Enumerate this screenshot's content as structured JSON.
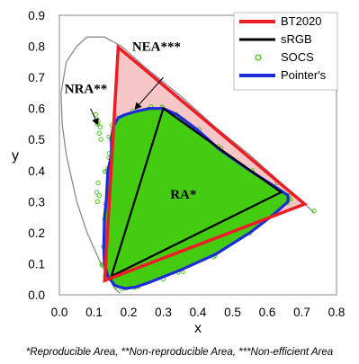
{
  "chart_data": {
    "type": "scatter",
    "xlabel": "x",
    "ylabel": "y",
    "xlim": [
      0.0,
      0.8
    ],
    "ylim": [
      0.0,
      0.9
    ],
    "xticks": [
      "0.0",
      "0.1",
      "0.2",
      "0.3",
      "0.4",
      "0.5",
      "0.6",
      "0.7",
      "0.8"
    ],
    "yticks": [
      "0.0",
      "0.1",
      "0.2",
      "0.3",
      "0.4",
      "0.5",
      "0.6",
      "0.7",
      "0.8",
      "0.9"
    ],
    "grid": false,
    "legend_position": "top-right",
    "spectral_locus": [
      [
        0.175,
        0.005
      ],
      [
        0.17,
        0.01
      ],
      [
        0.16,
        0.02
      ],
      [
        0.145,
        0.05
      ],
      [
        0.12,
        0.1
      ],
      [
        0.08,
        0.2
      ],
      [
        0.05,
        0.3
      ],
      [
        0.02,
        0.45
      ],
      [
        0.008,
        0.55
      ],
      [
        0.005,
        0.65
      ],
      [
        0.02,
        0.75
      ],
      [
        0.05,
        0.8
      ],
      [
        0.08,
        0.83
      ],
      [
        0.13,
        0.83
      ],
      [
        0.18,
        0.8
      ],
      [
        0.25,
        0.73
      ],
      [
        0.35,
        0.64
      ],
      [
        0.45,
        0.54
      ],
      [
        0.55,
        0.45
      ],
      [
        0.65,
        0.35
      ],
      [
        0.735,
        0.265
      ]
    ],
    "series": [
      {
        "name": "BT2020",
        "color": "#ee1c25",
        "type": "triangle",
        "points": [
          [
            0.708,
            0.292
          ],
          [
            0.17,
            0.797
          ],
          [
            0.131,
            0.046
          ]
        ]
      },
      {
        "name": "sRGB",
        "color": "#000000",
        "type": "triangle",
        "points": [
          [
            0.64,
            0.33
          ],
          [
            0.3,
            0.6
          ],
          [
            0.15,
            0.06
          ]
        ]
      },
      {
        "name": "SOCS",
        "color": "#44cc11",
        "type": "scatter",
        "extra_points": [
          [
            0.735,
            0.27
          ],
          [
            0.11,
            0.55
          ],
          [
            0.115,
            0.52
          ],
          [
            0.105,
            0.58
          ],
          [
            0.12,
            0.5
          ],
          [
            0.112,
            0.56
          ],
          [
            0.118,
            0.54
          ],
          [
            0.108,
            0.33
          ],
          [
            0.11,
            0.3
          ],
          [
            0.112,
            0.36
          ],
          [
            0.115,
            0.32
          ],
          [
            0.18,
            0.02
          ],
          [
            0.22,
            0.03
          ],
          [
            0.3,
            0.05
          ],
          [
            0.45,
            0.2
          ],
          [
            0.6,
            0.28
          ]
        ]
      },
      {
        "name": "Pointer's",
        "color": "#1e2bd9",
        "type": "polygon",
        "points": [
          [
            0.66,
            0.32
          ],
          [
            0.62,
            0.35
          ],
          [
            0.55,
            0.4
          ],
          [
            0.46,
            0.47
          ],
          [
            0.4,
            0.53
          ],
          [
            0.34,
            0.58
          ],
          [
            0.3,
            0.6
          ],
          [
            0.26,
            0.6
          ],
          [
            0.22,
            0.59
          ],
          [
            0.19,
            0.58
          ],
          [
            0.17,
            0.57
          ],
          [
            0.155,
            0.54
          ],
          [
            0.15,
            0.5
          ],
          [
            0.15,
            0.45
          ],
          [
            0.14,
            0.4
          ],
          [
            0.135,
            0.3
          ],
          [
            0.13,
            0.25
          ],
          [
            0.128,
            0.15
          ],
          [
            0.13,
            0.1
          ],
          [
            0.14,
            0.06
          ],
          [
            0.16,
            0.03
          ],
          [
            0.19,
            0.02
          ],
          [
            0.22,
            0.025
          ],
          [
            0.26,
            0.04
          ],
          [
            0.35,
            0.08
          ],
          [
            0.45,
            0.13
          ],
          [
            0.55,
            0.2
          ],
          [
            0.62,
            0.26
          ],
          [
            0.66,
            0.3
          ]
        ]
      }
    ],
    "annotations": [
      {
        "text": "NEA***",
        "xy": [
          0.21,
          0.785
        ],
        "arrow_from": [
          0.3,
          0.7
        ],
        "arrow_to": [
          0.22,
          0.6
        ]
      },
      {
        "text": "NRA**",
        "xy": [
          0.015,
          0.65
        ],
        "arrow_from": [
          0.09,
          0.6
        ],
        "arrow_to": [
          0.11,
          0.55
        ]
      },
      {
        "text": "RA*",
        "xy": [
          0.32,
          0.31
        ]
      }
    ]
  },
  "caption": "*Reproducible Area, **Non-reproducible Area, ***Non-efficient Area"
}
